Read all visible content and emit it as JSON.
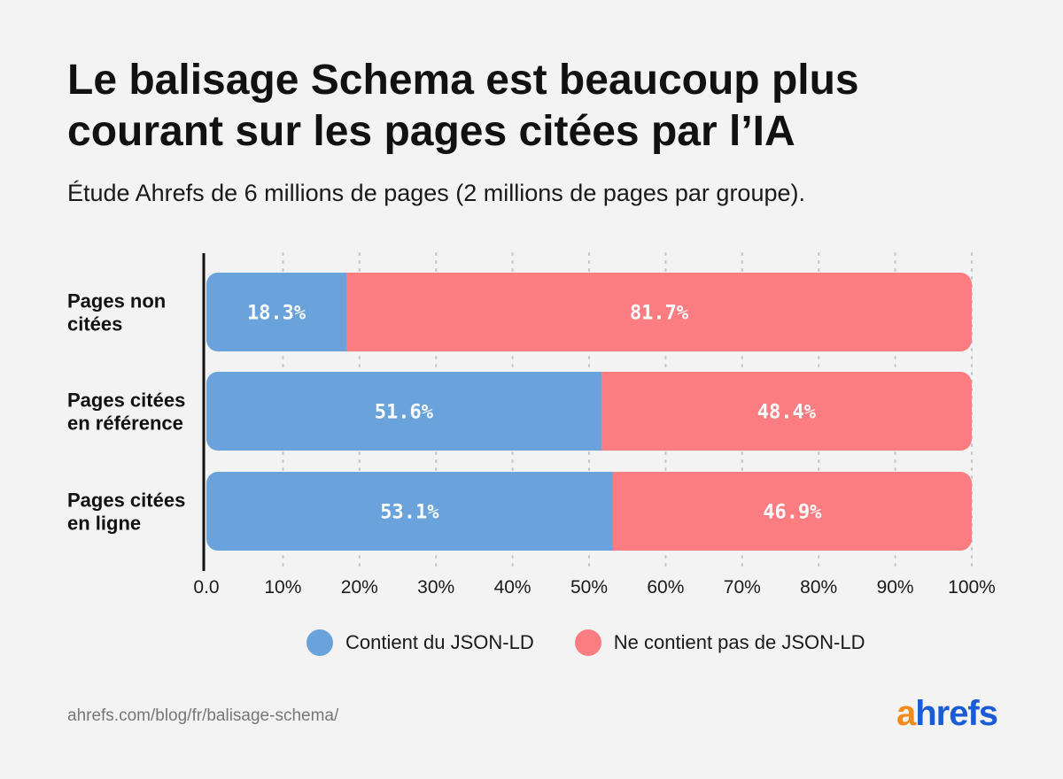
{
  "header": {
    "title_line1": "Le balisage Schema est beaucoup plus",
    "title_line2": "courant sur les pages citées par l’IA",
    "subtitle": "Étude Ahrefs de 6 millions de pages (2 millions de pages par groupe)."
  },
  "colors": {
    "series_with": "#6aa2dc",
    "series_without": "#fb7c81",
    "logo_a": "#f28a1e",
    "logo_rest": "#1a5bd6"
  },
  "chart_data": {
    "type": "bar",
    "orientation": "horizontal",
    "stacked": true,
    "categories": [
      [
        "Pages non",
        "citées"
      ],
      [
        "Pages citées",
        "en référence"
      ],
      [
        "Pages citées",
        "en ligne"
      ]
    ],
    "series": [
      {
        "name": "Contient du JSON-LD",
        "values": [
          18.3,
          51.6,
          53.1
        ],
        "labels": [
          "18.3%",
          "51.6%",
          "53.1%"
        ],
        "color": "#6aa2dc"
      },
      {
        "name": "Ne contient pas de JSON-LD",
        "values": [
          81.7,
          48.4,
          46.9
        ],
        "labels": [
          "81.7%",
          "48.4%",
          "46.9%"
        ],
        "color": "#fb7c81"
      }
    ],
    "xlim": [
      0,
      100
    ],
    "xticks": [
      0,
      10,
      20,
      30,
      40,
      50,
      60,
      70,
      80,
      90,
      100
    ],
    "xtick_labels": [
      "0.0",
      "10%",
      "20%",
      "30%",
      "40%",
      "50%",
      "60%",
      "70%",
      "80%",
      "90%",
      "100%"
    ],
    "grid": "vertical dotted",
    "legend_position": "bottom"
  },
  "footer": {
    "source": "ahrefs.com/blog/fr/balisage-schema/",
    "logo_a": "a",
    "logo_rest": "hrefs"
  }
}
